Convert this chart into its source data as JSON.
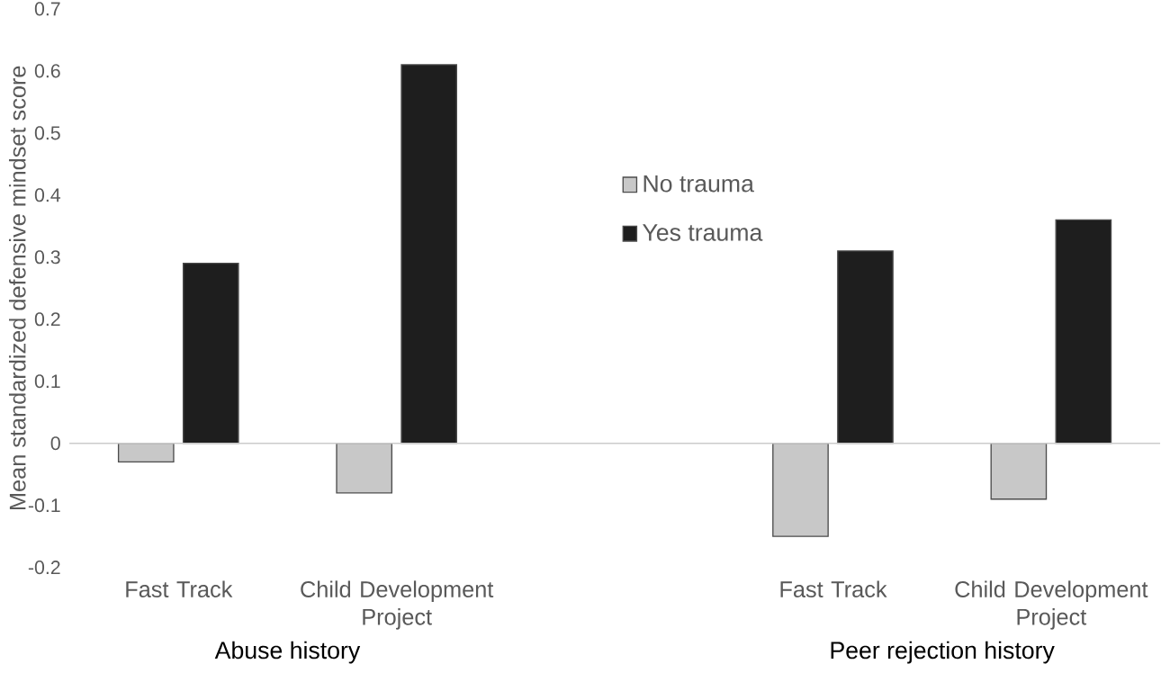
{
  "chart_data": {
    "type": "bar",
    "ylabel": "Mean standardized defensive mindset score",
    "categories": [
      "Fast Track",
      "Child Development Project",
      null,
      "Fast Track",
      "Child Development Project"
    ],
    "series": [
      {
        "name": "No trauma",
        "color": "#c8c8c8",
        "values": [
          -0.03,
          -0.08,
          null,
          -0.15,
          -0.09
        ]
      },
      {
        "name": "Yes trauma",
        "color": "#1e1e1e",
        "values": [
          0.29,
          0.61,
          null,
          0.31,
          0.36
        ]
      }
    ],
    "ylim": [
      -0.2,
      0.7
    ],
    "yticks": [
      -0.2,
      -0.1,
      0,
      0.1,
      0.2,
      0.3,
      0.4,
      0.5,
      0.6,
      0.7
    ],
    "legend": "center",
    "annotations": [
      "Abuse history",
      "Peer rejection history"
    ]
  }
}
